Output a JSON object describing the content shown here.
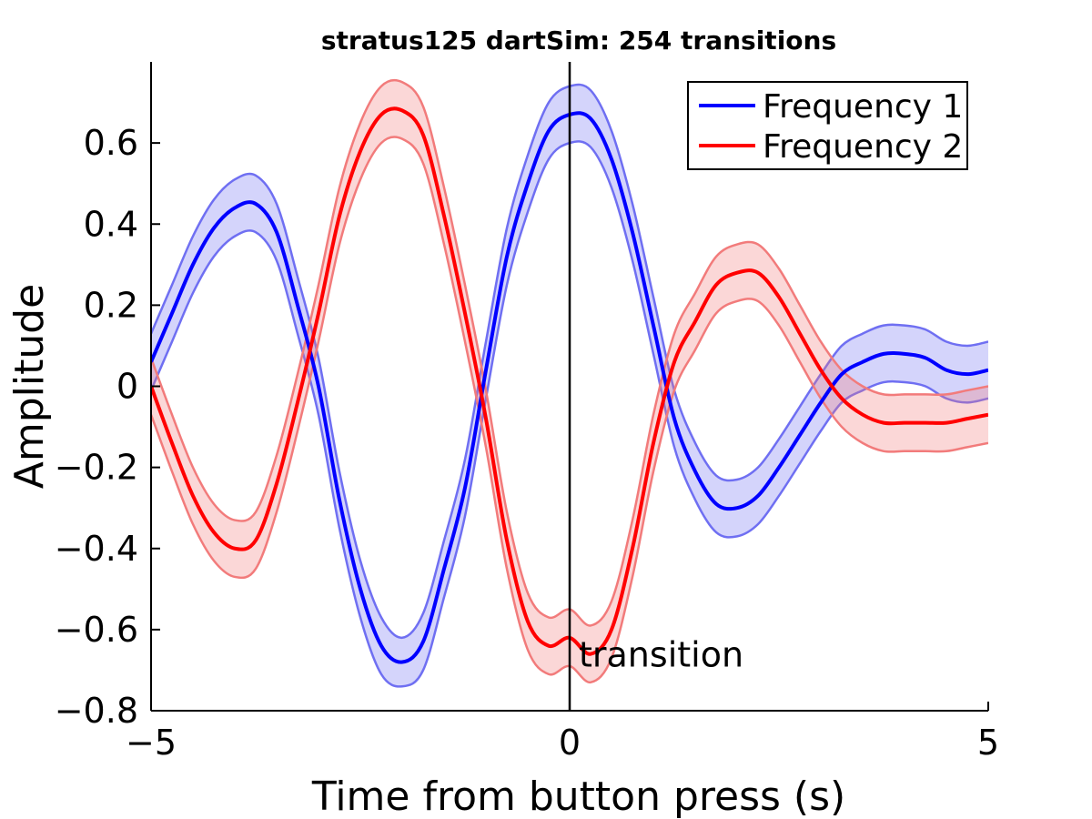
{
  "chart_data": {
    "type": "line",
    "title": "stratus125 dartSim: 254 transitions",
    "xlabel": "Time from button press (s)",
    "ylabel": "Amplitude",
    "xlim": [
      -5,
      5
    ],
    "ylim": [
      -0.8,
      0.8
    ],
    "xticks": [
      -5,
      0,
      5
    ],
    "xtick_labels": [
      "−5",
      "0",
      "5"
    ],
    "yticks": [
      -0.8,
      -0.6,
      -0.4,
      -0.2,
      0,
      0.2,
      0.4,
      0.6
    ],
    "ytick_labels": [
      "−0.8",
      "−0.6",
      "−0.4",
      "−0.2",
      "0",
      "0.2",
      "0.4",
      "0.6"
    ],
    "grid": false,
    "legend_position": "top-right",
    "annotations": [
      {
        "text": "transition",
        "x": 0
      }
    ],
    "series": [
      {
        "name": "Frequency 1",
        "color": "#0000ff",
        "band_color": "#6f6ff2",
        "x": [
          -5.0,
          -4.75,
          -4.5,
          -4.25,
          -4.0,
          -3.75,
          -3.5,
          -3.25,
          -3.0,
          -2.75,
          -2.5,
          -2.25,
          -2.0,
          -1.75,
          -1.5,
          -1.25,
          -1.0,
          -0.75,
          -0.5,
          -0.25,
          0.0,
          0.25,
          0.5,
          0.75,
          1.0,
          1.25,
          1.5,
          1.75,
          2.0,
          2.25,
          2.5,
          2.75,
          3.0,
          3.25,
          3.5,
          3.75,
          4.0,
          4.25,
          4.5,
          4.75,
          5.0
        ],
        "values": [
          0.06,
          0.18,
          0.3,
          0.39,
          0.44,
          0.45,
          0.38,
          0.2,
          0.0,
          -0.28,
          -0.5,
          -0.64,
          -0.68,
          -0.63,
          -0.45,
          -0.25,
          0.04,
          0.32,
          0.5,
          0.63,
          0.67,
          0.66,
          0.56,
          0.38,
          0.15,
          -0.08,
          -0.21,
          -0.29,
          -0.3,
          -0.27,
          -0.2,
          -0.12,
          -0.04,
          0.03,
          0.06,
          0.08,
          0.08,
          0.07,
          0.04,
          0.03,
          0.04
        ],
        "upper": [
          0.13,
          0.25,
          0.37,
          0.46,
          0.51,
          0.52,
          0.45,
          0.27,
          0.07,
          -0.21,
          -0.43,
          -0.57,
          -0.62,
          -0.56,
          -0.38,
          -0.18,
          0.11,
          0.39,
          0.57,
          0.7,
          0.74,
          0.73,
          0.63,
          0.45,
          0.22,
          -0.01,
          -0.14,
          -0.22,
          -0.23,
          -0.2,
          -0.13,
          -0.05,
          0.03,
          0.1,
          0.13,
          0.15,
          0.15,
          0.14,
          0.11,
          0.1,
          0.11
        ],
        "lower": [
          -0.01,
          0.11,
          0.23,
          0.32,
          0.37,
          0.38,
          0.31,
          0.13,
          -0.07,
          -0.35,
          -0.57,
          -0.71,
          -0.74,
          -0.7,
          -0.52,
          -0.32,
          -0.03,
          0.25,
          0.43,
          0.56,
          0.6,
          0.59,
          0.49,
          0.31,
          0.08,
          -0.15,
          -0.28,
          -0.36,
          -0.37,
          -0.34,
          -0.27,
          -0.19,
          -0.11,
          -0.04,
          -0.01,
          0.01,
          0.01,
          0.0,
          -0.03,
          -0.04,
          -0.03
        ]
      },
      {
        "name": "Frequency 2",
        "color": "#ff0000",
        "band_color": "#f27b7b",
        "x": [
          -5.0,
          -4.75,
          -4.5,
          -4.25,
          -4.0,
          -3.75,
          -3.5,
          -3.25,
          -3.0,
          -2.75,
          -2.5,
          -2.25,
          -2.0,
          -1.75,
          -1.5,
          -1.25,
          -1.0,
          -0.75,
          -0.5,
          -0.25,
          0.0,
          0.25,
          0.5,
          0.75,
          1.0,
          1.25,
          1.5,
          1.75,
          2.0,
          2.25,
          2.5,
          2.75,
          3.0,
          3.25,
          3.5,
          3.75,
          4.0,
          4.25,
          4.5,
          4.75,
          5.0
        ],
        "values": [
          0.0,
          -0.14,
          -0.27,
          -0.36,
          -0.4,
          -0.38,
          -0.24,
          -0.04,
          0.18,
          0.42,
          0.58,
          0.67,
          0.68,
          0.62,
          0.42,
          0.18,
          -0.08,
          -0.38,
          -0.58,
          -0.64,
          -0.62,
          -0.66,
          -0.6,
          -0.4,
          -0.14,
          0.06,
          0.16,
          0.25,
          0.28,
          0.28,
          0.22,
          0.13,
          0.04,
          -0.03,
          -0.07,
          -0.09,
          -0.09,
          -0.09,
          -0.09,
          -0.08,
          -0.07
        ],
        "upper": [
          0.07,
          -0.07,
          -0.2,
          -0.29,
          -0.33,
          -0.31,
          -0.17,
          0.03,
          0.25,
          0.49,
          0.65,
          0.74,
          0.75,
          0.69,
          0.49,
          0.25,
          -0.01,
          -0.31,
          -0.51,
          -0.57,
          -0.55,
          -0.59,
          -0.53,
          -0.33,
          -0.07,
          0.13,
          0.23,
          0.32,
          0.35,
          0.35,
          0.29,
          0.2,
          0.11,
          0.04,
          0.0,
          -0.02,
          -0.02,
          -0.02,
          -0.02,
          -0.01,
          0.0
        ],
        "lower": [
          -0.07,
          -0.21,
          -0.34,
          -0.43,
          -0.47,
          -0.45,
          -0.31,
          -0.11,
          0.11,
          0.35,
          0.51,
          0.6,
          0.61,
          0.55,
          0.35,
          0.11,
          -0.15,
          -0.45,
          -0.65,
          -0.71,
          -0.69,
          -0.73,
          -0.67,
          -0.47,
          -0.21,
          -0.01,
          0.09,
          0.18,
          0.21,
          0.21,
          0.15,
          0.06,
          -0.03,
          -0.1,
          -0.14,
          -0.16,
          -0.16,
          -0.16,
          -0.16,
          -0.15,
          -0.14
        ]
      }
    ]
  }
}
